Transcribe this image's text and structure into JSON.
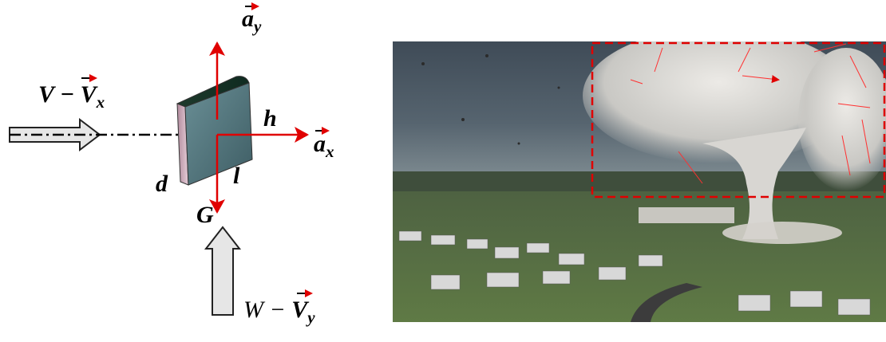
{
  "labels": {
    "a_y": {
      "symbol": "a",
      "subscript": "y"
    },
    "v_x": {
      "prefix": "V −",
      "symbol": "V",
      "subscript": "x"
    },
    "h": "h",
    "a_x": {
      "symbol": "a",
      "subscript": "x"
    },
    "d": "d",
    "l": "l",
    "G": "G",
    "w_y": {
      "prefix": "W −",
      "symbol": "V",
      "subscript": "y"
    }
  }
}
